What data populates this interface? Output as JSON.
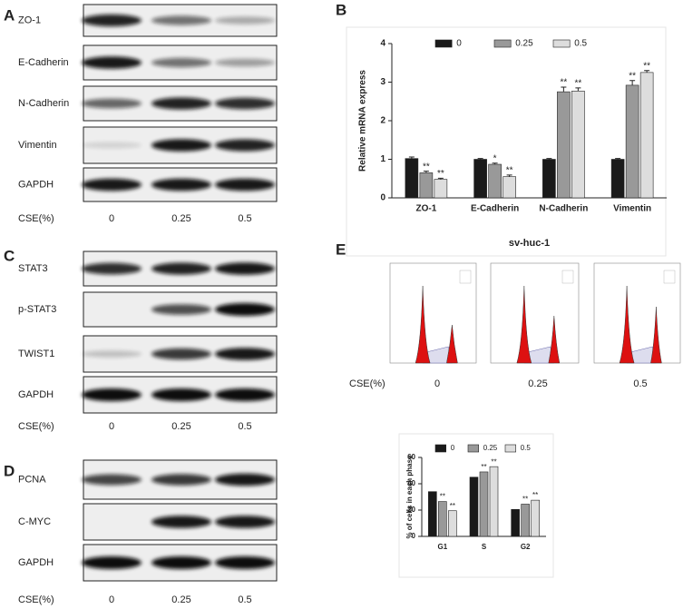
{
  "panels": {
    "A": {
      "letter": "A",
      "rows": [
        "ZO-1",
        "E-Cadherin",
        "N-Cadherin",
        "Vimentin",
        "GAPDH"
      ],
      "cse_label": "CSE(%)",
      "conditions": [
        "0",
        "0.25",
        "0.5"
      ]
    },
    "C": {
      "letter": "C",
      "rows": [
        "STAT3",
        "p-STAT3",
        "TWIST1",
        "GAPDH"
      ],
      "cse_label": "CSE(%)",
      "conditions": [
        "0",
        "0.25",
        "0.5"
      ]
    },
    "D": {
      "letter": "D",
      "rows": [
        "PCNA",
        "C-MYC",
        "GAPDH"
      ],
      "cse_label": "CSE(%)",
      "conditions": [
        "0",
        "0.25",
        "0.5"
      ]
    },
    "E": {
      "letter": "E",
      "cse_label": "CSE(%)",
      "conditions": [
        "0",
        "0.25",
        "0.5"
      ]
    }
  },
  "chart_data": [
    {
      "type": "bar",
      "panel_letter": "B",
      "ylabel": "Relative mRNA express",
      "xlabel": "sv-huc-1",
      "categories": [
        "ZO-1",
        "E-Cadherin",
        "N-Cadherin",
        "Vimentin"
      ],
      "series": [
        {
          "name": "0",
          "color": "#1a1a1a",
          "values": [
            1.02,
            1.0,
            1.0,
            1.0
          ],
          "errors": [
            0.04,
            0.02,
            0.02,
            0.02
          ]
        },
        {
          "name": "0.25",
          "color": "#999999",
          "values": [
            0.65,
            0.87,
            2.75,
            2.92
          ],
          "errors": [
            0.04,
            0.03,
            0.12,
            0.12
          ],
          "significance": [
            "**",
            "*",
            "**",
            "**"
          ]
        },
        {
          "name": "0.5",
          "color": "#dddddd",
          "values": [
            0.48,
            0.55,
            2.77,
            3.25
          ],
          "errors": [
            0.03,
            0.04,
            0.08,
            0.05
          ],
          "significance": [
            "**",
            "**",
            "**",
            "**"
          ]
        }
      ],
      "ylim": [
        0,
        4
      ],
      "yticks": [
        0,
        1,
        2,
        3,
        4
      ],
      "legend": "top"
    },
    {
      "type": "bar",
      "ylabel": "% of cells in each phase",
      "categories": [
        "G1",
        "S",
        "G2"
      ],
      "series": [
        {
          "name": "0",
          "color": "#1a1a1a",
          "values": [
            34,
            45,
            20.5
          ]
        },
        {
          "name": "0.25",
          "color": "#999999",
          "values": [
            26.5,
            49,
            24.5
          ],
          "significance": [
            "**",
            "**",
            "**"
          ]
        },
        {
          "name": "0.5",
          "color": "#dddddd",
          "values": [
            19.5,
            53,
            27.5
          ],
          "significance": [
            "**",
            "**",
            "**"
          ]
        }
      ],
      "ylim": [
        0,
        60
      ],
      "yticks": [
        0,
        20,
        40,
        60
      ],
      "legend": "top"
    }
  ]
}
